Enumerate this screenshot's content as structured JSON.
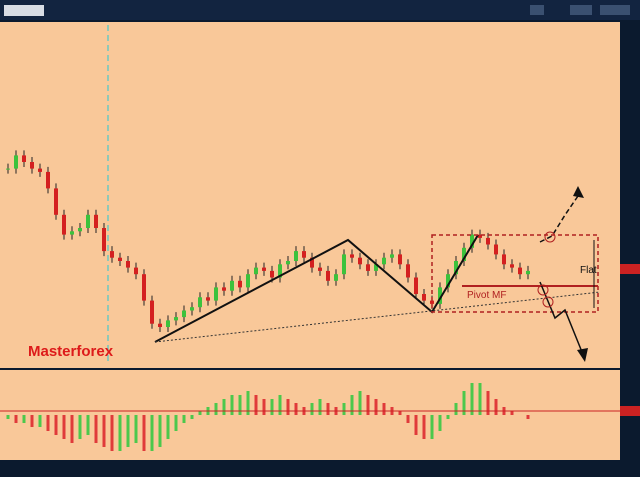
{
  "watermark": "Masterforex",
  "annotations": {
    "flat": "Flat",
    "pivot": "Pivot MF"
  },
  "price_chart": {
    "closes": [
      58,
      62,
      60,
      58,
      57,
      52,
      44,
      38,
      39,
      40,
      44,
      40,
      33,
      31,
      30,
      28,
      26,
      18,
      11,
      10,
      12,
      13,
      15,
      16,
      19,
      18,
      22,
      21,
      24,
      22,
      26,
      28,
      27,
      25,
      29,
      30,
      33,
      31,
      28,
      27,
      24,
      26,
      32,
      31,
      29,
      27,
      29,
      31,
      32,
      29,
      25,
      20,
      18,
      17,
      22,
      26,
      30,
      34,
      38,
      37,
      35,
      32,
      29,
      28,
      26,
      27
    ],
    "ylim": [
      0,
      100
    ]
  },
  "oscillator": {
    "values": [
      -1,
      -2,
      -2,
      -3,
      -3,
      -4,
      -5,
      -6,
      -7,
      -6,
      -5,
      -7,
      -8,
      -9,
      -9,
      -8,
      -7,
      -9,
      -9,
      -8,
      -6,
      -4,
      -2,
      -1,
      1,
      2,
      3,
      4,
      5,
      5,
      6,
      5,
      4,
      4,
      5,
      4,
      3,
      2,
      3,
      4,
      3,
      2,
      3,
      5,
      6,
      5,
      4,
      3,
      2,
      1,
      -2,
      -5,
      -6,
      -6,
      -4,
      -1,
      3,
      6,
      8,
      8,
      6,
      4,
      2,
      1,
      0,
      -1
    ],
    "ylim": [
      -10,
      10
    ]
  }
}
